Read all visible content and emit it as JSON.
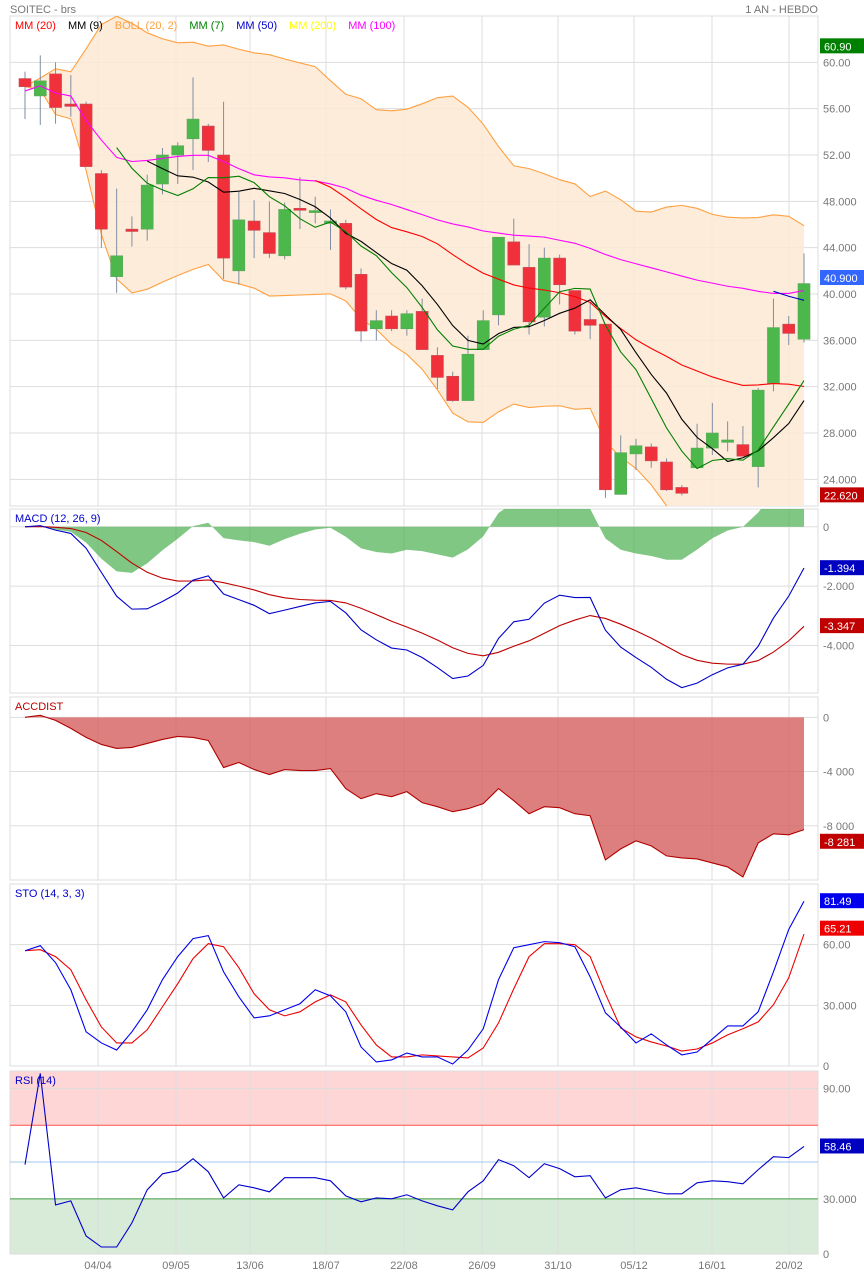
{
  "header": {
    "title": "SOITEC - brs",
    "period": "1 AN - HEBDO"
  },
  "legend": [
    {
      "label": "MM (20)",
      "color": "#ff0000"
    },
    {
      "label": "MM (9)",
      "color": "#000000"
    },
    {
      "label": "BOLL (20, 2)",
      "color": "#ffa040"
    },
    {
      "label": "MM (7)",
      "color": "#008000"
    },
    {
      "label": "MM (50)",
      "color": "#0000cc"
    },
    {
      "label": "MM (200)",
      "color": "#ffff00"
    },
    {
      "label": "MM (100)",
      "color": "#ff00ff"
    }
  ],
  "x_labels": [
    "04/04",
    "09/05",
    "13/06",
    "18/07",
    "22/08",
    "26/09",
    "31/10",
    "05/12",
    "16/01",
    "20/02"
  ],
  "chart_data": [
    {
      "type": "candlestick",
      "panel": "price",
      "ylim": [
        21.7,
        64
      ],
      "y_ticks": [
        {
          "v": 60,
          "label": "60.00"
        },
        {
          "v": 56,
          "label": "56.00"
        },
        {
          "v": 52,
          "label": "52.00"
        },
        {
          "v": 48,
          "label": "48.000"
        },
        {
          "v": 44,
          "label": "44.000"
        },
        {
          "v": 40,
          "label": "40.000"
        },
        {
          "v": 36,
          "label": "36.000"
        },
        {
          "v": 32,
          "label": "32.000"
        },
        {
          "v": 28,
          "label": "28.000"
        },
        {
          "v": 24,
          "label": "24.000"
        }
      ],
      "badges": [
        {
          "v": 60.9,
          "label": "60.90",
          "color": "#008000"
        },
        {
          "v": 40.9,
          "label": "40.900",
          "color": "#3366ff"
        },
        {
          "v": 22.62,
          "label": "22.620",
          "color": "#c00000"
        }
      ],
      "ohlc": [
        [
          58.6,
          59.2,
          55.1,
          57.9
        ],
        [
          57.1,
          60.6,
          54.6,
          58.4
        ],
        [
          59.0,
          60.0,
          54.7,
          56.1
        ],
        [
          56.4,
          58.9,
          55.3,
          56.2
        ],
        [
          56.4,
          56.6,
          51.0,
          51.0
        ],
        [
          50.4,
          50.7,
          44.0,
          45.6
        ],
        [
          41.5,
          49.1,
          40.1,
          43.3
        ],
        [
          45.6,
          46.7,
          44.1,
          45.4
        ],
        [
          45.6,
          50.3,
          44.6,
          49.4
        ],
        [
          49.5,
          52.6,
          48.6,
          52.0
        ],
        [
          52.0,
          53.1,
          49.5,
          52.8
        ],
        [
          53.4,
          58.7,
          50.7,
          55.1
        ],
        [
          54.5,
          54.7,
          51.4,
          52.4
        ],
        [
          52.0,
          56.6,
          41.3,
          43.1
        ],
        [
          42.0,
          48.8,
          40.8,
          46.4
        ],
        [
          46.3,
          48.1,
          43.1,
          45.5
        ],
        [
          45.3,
          48.0,
          43.1,
          43.5
        ],
        [
          43.3,
          47.9,
          43.0,
          47.3
        ],
        [
          47.4,
          50.1,
          45.6,
          47.3
        ],
        [
          47.1,
          48.4,
          46.1,
          47.2
        ],
        [
          46.1,
          47.3,
          43.8,
          46.3
        ],
        [
          46.1,
          46.4,
          40.4,
          40.6
        ],
        [
          41.7,
          42.2,
          35.9,
          36.8
        ],
        [
          37.0,
          38.6,
          36.0,
          37.7
        ],
        [
          38.1,
          38.6,
          36.8,
          37.0
        ],
        [
          37.0,
          38.6,
          36.4,
          38.3
        ],
        [
          38.5,
          39.6,
          35.2,
          35.2
        ],
        [
          34.7,
          35.4,
          31.8,
          32.8
        ],
        [
          32.9,
          33.3,
          30.7,
          30.8
        ],
        [
          30.8,
          36.4,
          30.8,
          34.8
        ],
        [
          35.2,
          38.6,
          35.2,
          37.7
        ],
        [
          38.2,
          44.9,
          37.3,
          44.9
        ],
        [
          44.5,
          46.5,
          42.5,
          42.5
        ],
        [
          42.3,
          44.3,
          36.5,
          37.6
        ],
        [
          38.0,
          44.0,
          37.2,
          43.1
        ],
        [
          43.1,
          43.4,
          39.1,
          40.8
        ],
        [
          40.3,
          40.3,
          36.5,
          36.8
        ],
        [
          37.8,
          39.3,
          36.1,
          37.3
        ],
        [
          37.4,
          37.4,
          22.4,
          23.1
        ],
        [
          22.7,
          27.8,
          22.7,
          26.3
        ],
        [
          26.2,
          27.5,
          24.8,
          26.9
        ],
        [
          26.8,
          27.1,
          25.0,
          25.6
        ],
        [
          25.5,
          25.8,
          23.0,
          23.1
        ],
        [
          23.3,
          23.5,
          22.62,
          22.8
        ],
        [
          25.0,
          28.8,
          25.0,
          26.7
        ],
        [
          26.7,
          30.6,
          26.1,
          28.0
        ],
        [
          27.2,
          29.0,
          26.4,
          27.4
        ],
        [
          27.0,
          28.6,
          26.0,
          26.0
        ],
        [
          25.1,
          31.9,
          23.3,
          31.7
        ],
        [
          32.3,
          39.6,
          31.6,
          37.1
        ],
        [
          37.4,
          38.1,
          35.6,
          36.6
        ],
        [
          36.1,
          43.5,
          35.8,
          40.9
        ]
      ],
      "mm100": [
        57.53,
        57.97,
        57.35,
        57.09,
        54.97,
        53.29,
        51.79,
        51.44,
        51.53,
        51.7,
        51.88,
        51.97,
        51.97,
        51.44,
        50.82,
        50.29,
        50.11,
        50.03,
        49.85,
        49.76,
        49.5,
        49.14,
        48.53,
        48.09,
        47.73,
        47.29,
        46.85,
        46.4,
        46.05,
        45.79,
        45.44,
        45.26,
        45.08,
        45.0,
        44.91,
        44.64,
        44.38,
        43.94,
        43.41,
        42.97,
        42.61,
        42.26,
        41.91,
        41.55,
        41.2,
        40.94,
        40.67,
        40.49,
        40.23,
        40.05,
        40.05,
        40.3
      ]
    },
    {
      "type": "line",
      "panel": "macd",
      "title": "MACD (12, 26, 9)",
      "ylim": [
        -5.6,
        0.6
      ],
      "y_ticks": [
        {
          "v": 0,
          "label": "0"
        },
        {
          "v": -2,
          "label": "-2.000"
        },
        {
          "v": -4,
          "label": "-4.000"
        }
      ],
      "badges": [
        {
          "label": "-1.394",
          "color": "#0000c0",
          "v": -1.394
        },
        {
          "label": "-3.347",
          "color": "#c00000",
          "v": -3.347
        }
      ]
    },
    {
      "type": "area",
      "panel": "accdist",
      "title": "ACCDIST",
      "ylim": [
        -12000,
        1500
      ],
      "y_ticks": [
        {
          "v": 0,
          "label": "0"
        },
        {
          "v": -4000,
          "label": "-4 000"
        },
        {
          "v": -8000,
          "label": "-8 000"
        }
      ],
      "badges": [
        {
          "label": "-8 281",
          "color": "#c00000",
          "v": -8281
        }
      ],
      "values": [
        0,
        148,
        -222,
        -815,
        -1481,
        -2000,
        -2296,
        -2222,
        -1926,
        -1630,
        -1407,
        -1481,
        -1704,
        -3704,
        -3333,
        -3852,
        -4222,
        -3852,
        -3926,
        -3926,
        -3778,
        -5259,
        -6000,
        -5630,
        -5852,
        -5481,
        -6296,
        -6593,
        -6963,
        -6741,
        -6370,
        -5259,
        -6148,
        -7111,
        -6593,
        -6667,
        -7111,
        -7259,
        -10519,
        -9704,
        -9111,
        -9481,
        -10222,
        -10370,
        -10444,
        -10741,
        -11037,
        -11778,
        -9259,
        -8593,
        -8667,
        -8281
      ]
    },
    {
      "type": "line",
      "panel": "sto",
      "title": "STO (14, 3, 3)",
      "ylim": [
        0,
        90
      ],
      "y_ticks": [
        {
          "v": 60,
          "label": "60.00"
        },
        {
          "v": 30,
          "label": "30.000"
        },
        {
          "v": 0,
          "label": "0"
        }
      ],
      "badges": [
        {
          "label": "81.49",
          "color": "#0000ee",
          "v": 81.49
        },
        {
          "label": "65.21",
          "color": "#ee0000",
          "v": 65.21
        }
      ],
      "k": [
        57.0,
        59.5,
        51.1,
        37.7,
        16.9,
        11.4,
        7.9,
        16.9,
        27.8,
        42.7,
        54.1,
        63.0,
        64.5,
        46.6,
        34.2,
        23.8,
        24.8,
        27.8,
        30.8,
        37.7,
        34.7,
        26.8,
        9.4,
        2.0,
        3.0,
        6.4,
        4.5,
        4.5,
        1.0,
        7.9,
        18.4,
        42.7,
        58.5,
        60.0,
        61.5,
        61.0,
        59.0,
        44.1,
        26.3,
        19.3,
        11.4,
        15.9,
        10.4,
        5.5,
        6.9,
        13.4,
        19.8,
        19.8,
        26.8,
        46.6,
        67.5,
        81.49
      ],
      "d": [
        57.0,
        57.5,
        54.1,
        47.6,
        32.7,
        19.3,
        11.4,
        11.4,
        17.9,
        29.3,
        40.7,
        53.1,
        60.5,
        59.0,
        48.6,
        35.7,
        27.8,
        24.8,
        26.8,
        31.7,
        35.2,
        31.7,
        20.3,
        10.4,
        4.5,
        4.5,
        5.5,
        5.0,
        4.5,
        4.0,
        8.9,
        21.3,
        38.2,
        54.1,
        60.5,
        60.5,
        60.0,
        54.1,
        35.7,
        18.8,
        14.4,
        11.9,
        9.9,
        7.4,
        8.4,
        11.4,
        15.4,
        18.4,
        21.8,
        30.3,
        43.6,
        65.21
      ]
    },
    {
      "type": "line",
      "panel": "rsi",
      "title": "RSI (14)",
      "ylim": [
        0,
        99.5
      ],
      "y_ticks": [
        {
          "v": 90,
          "label": "90.00"
        },
        {
          "v": 30,
          "label": "30.000"
        },
        {
          "v": 0,
          "label": "0"
        }
      ],
      "badges": [
        {
          "label": "58.46",
          "color": "#0000c0",
          "v": 58.46
        }
      ],
      "zones": {
        "overbought": 70,
        "oversold": 30,
        "mid": 50
      },
      "values": [
        48.6,
        98.2,
        26.7,
        28.9,
        9.8,
        3.8,
        3.8,
        16.9,
        34.9,
        43.6,
        45.3,
        51.8,
        44.7,
        30.5,
        37.6,
        36.0,
        33.8,
        41.5,
        41.5,
        41.5,
        39.8,
        31.6,
        28.4,
        30.5,
        30.0,
        32.2,
        28.9,
        26.2,
        24.0,
        33.8,
        39.8,
        51.3,
        48.0,
        41.5,
        49.1,
        46.4,
        42.0,
        42.6,
        30.5,
        34.9,
        36.0,
        34.4,
        32.7,
        32.7,
        38.7,
        39.8,
        39.3,
        38.2,
        45.8,
        52.9,
        52.4,
        58.46
      ]
    }
  ]
}
